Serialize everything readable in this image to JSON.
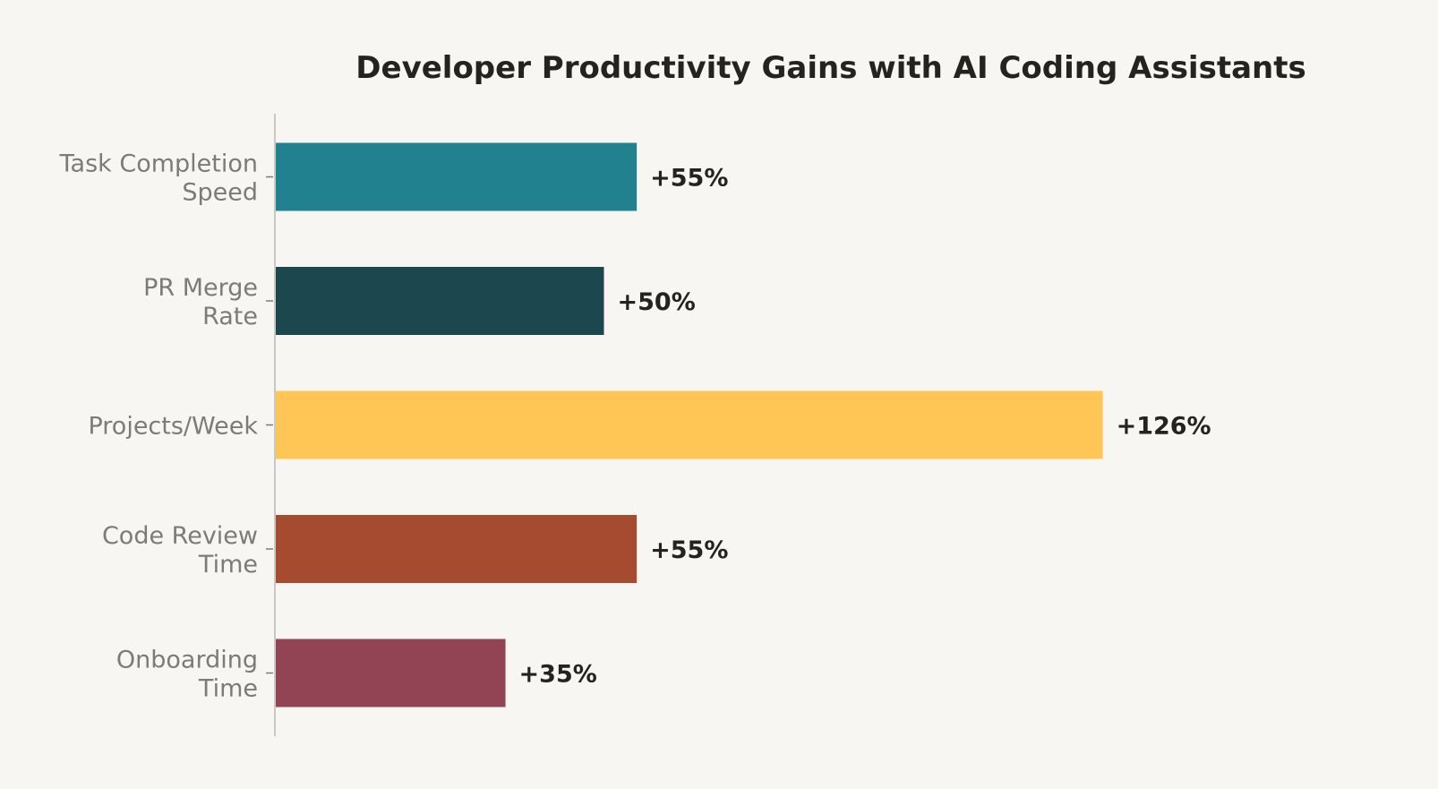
{
  "chart_data": {
    "type": "bar",
    "orientation": "horizontal",
    "title": "Developer Productivity Gains with AI Coding Assistants",
    "xlabel": "",
    "ylabel": "",
    "categories": [
      [
        "Task Completion",
        "Speed"
      ],
      [
        "PR Merge",
        "Rate"
      ],
      [
        "Projects/Week"
      ],
      [
        "Code Review",
        "Time"
      ],
      [
        "Onboarding",
        "Time"
      ]
    ],
    "values": [
      55,
      50,
      126,
      55,
      35
    ],
    "value_labels": [
      "+55%",
      "+50%",
      "+126%",
      "+55%",
      "+35%"
    ],
    "colors": [
      "#21818f",
      "#1d474e",
      "#ffc555",
      "#a64b30",
      "#924454"
    ],
    "xlim": [
      0,
      140
    ],
    "grid": false,
    "legend": "none"
  }
}
